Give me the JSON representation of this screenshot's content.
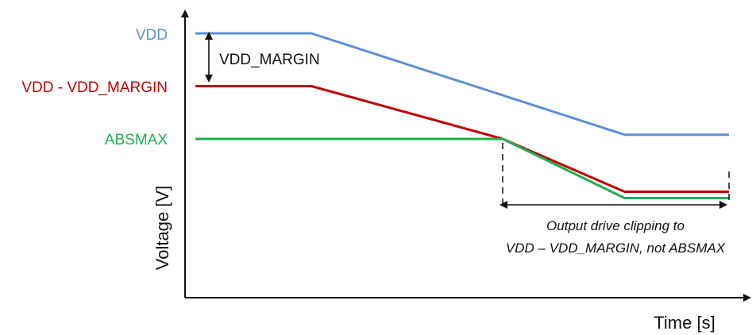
{
  "series": [
    {
      "key": "vdd",
      "name": "VDD",
      "color": "#5b8fd6",
      "points": [
        [
          0,
          100
        ],
        [
          1,
          100
        ],
        [
          3.7,
          52
        ],
        [
          4.6,
          52
        ]
      ]
    },
    {
      "key": "vdd_minus_margin",
      "name": "VDD - VDD_MARGIN",
      "color": "#c00000",
      "points": [
        [
          0,
          75
        ],
        [
          1,
          75
        ],
        [
          2.65,
          50
        ],
        [
          3.7,
          25
        ],
        [
          4.6,
          25
        ]
      ]
    },
    {
      "key": "absmax",
      "name": "ABSMAX",
      "color": "#1fb050",
      "points": [
        [
          0,
          50
        ],
        [
          2.65,
          50
        ],
        [
          3.7,
          22
        ],
        [
          4.6,
          22
        ]
      ]
    }
  ],
  "annotations": {
    "margin_label": "VDD_MARGIN",
    "clipping_note_line1": "Output drive clipping to",
    "clipping_note_line2": "VDD – VDD_MARGIN, not ABSMAX"
  },
  "axes": {
    "xlabel": "Time [s]",
    "ylabel": "Voltage [V]"
  }
}
